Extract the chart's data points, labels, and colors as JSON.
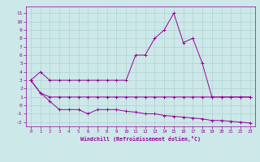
{
  "title": "",
  "xlabel": "Windchill (Refroidissement éolien,°C)",
  "x_values": [
    0,
    1,
    2,
    3,
    4,
    5,
    6,
    7,
    8,
    9,
    10,
    11,
    12,
    13,
    14,
    15,
    16,
    17,
    18,
    19,
    20,
    21,
    22,
    23
  ],
  "line1": [
    3,
    4,
    3,
    3,
    3,
    3,
    3,
    3,
    3,
    3,
    3,
    6,
    6,
    8,
    9,
    11,
    7.5,
    8,
    5,
    1,
    1,
    1,
    1,
    1
  ],
  "line2": [
    3,
    1.5,
    1,
    1,
    1,
    1,
    1,
    1,
    1,
    1,
    1,
    1,
    1,
    1,
    1,
    1,
    1,
    1,
    1,
    1,
    1,
    1,
    1,
    1
  ],
  "line3": [
    3,
    1.5,
    0.5,
    -0.5,
    -0.5,
    -0.5,
    -1,
    -0.5,
    -0.5,
    -0.5,
    -0.7,
    -0.8,
    -1,
    -1,
    -1.2,
    -1.3,
    -1.4,
    -1.5,
    -1.6,
    -1.8,
    -1.8,
    -1.9,
    -2,
    -2.1
  ],
  "bg_color": "#cce8e8",
  "line_color": "#990099",
  "grid_color": "#aacccc",
  "ylim": [
    -2.5,
    11.8
  ],
  "xlim": [
    -0.5,
    23.5
  ],
  "yticks": [
    -2,
    -1,
    0,
    1,
    2,
    3,
    4,
    5,
    6,
    7,
    8,
    9,
    10,
    11
  ],
  "xticks": [
    0,
    1,
    2,
    3,
    4,
    5,
    6,
    7,
    8,
    9,
    10,
    11,
    12,
    13,
    14,
    15,
    16,
    17,
    18,
    19,
    20,
    21,
    22,
    23
  ]
}
